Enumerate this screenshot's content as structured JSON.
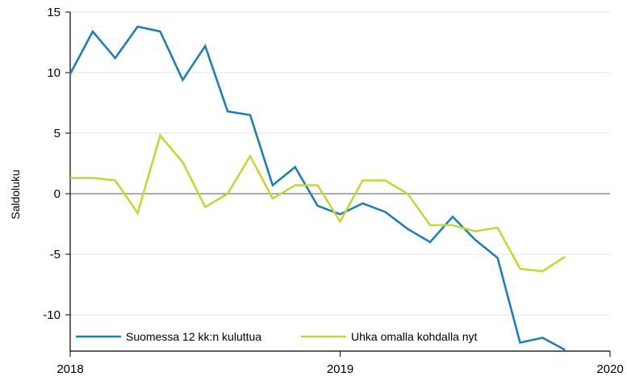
{
  "chart_data": {
    "type": "line",
    "ylabel": "Saldoluku",
    "xlabel": "",
    "title": "",
    "ylim": [
      -13,
      15
    ],
    "xlim": [
      2018,
      2020
    ],
    "yticks": [
      15,
      10,
      5,
      0,
      -5,
      -10
    ],
    "xticks": [
      {
        "value": 2018,
        "label": "2018"
      },
      {
        "value": 2019,
        "label": "2019"
      },
      {
        "value": 2020,
        "label": "2020"
      }
    ],
    "grid": "horizontal",
    "zero_line": true,
    "legend_position": "bottom-inside",
    "x": [
      "2018-01",
      "2018-02",
      "2018-03",
      "2018-04",
      "2018-05",
      "2018-06",
      "2018-07",
      "2018-08",
      "2018-09",
      "2018-10",
      "2018-11",
      "2018-12",
      "2019-01",
      "2019-02",
      "2019-03",
      "2019-04",
      "2019-05",
      "2019-06",
      "2019-07",
      "2019-08",
      "2019-09",
      "2019-10",
      "2019-11"
    ],
    "series": [
      {
        "name": "Suomessa 12 kk:n kuluttua",
        "color": "#1f7fb5",
        "values": [
          9.9,
          13.4,
          11.2,
          13.8,
          13.4,
          9.4,
          12.2,
          6.8,
          6.5,
          0.7,
          2.2,
          -1.0,
          -1.7,
          -0.8,
          -1.5,
          -2.9,
          -4.0,
          -1.9,
          -3.8,
          -5.3,
          -12.3,
          -11.9,
          -12.9
        ]
      },
      {
        "name": "Uhka omalla kohdalla nyt",
        "color": "#c2d83a",
        "values": [
          1.3,
          1.3,
          1.1,
          -1.6,
          4.8,
          2.6,
          -1.1,
          0.0,
          3.1,
          -0.4,
          0.7,
          0.7,
          -2.3,
          1.1,
          1.1,
          0.0,
          -2.6,
          -2.6,
          -3.1,
          -2.8,
          -6.2,
          -6.4,
          -5.2
        ]
      }
    ]
  }
}
